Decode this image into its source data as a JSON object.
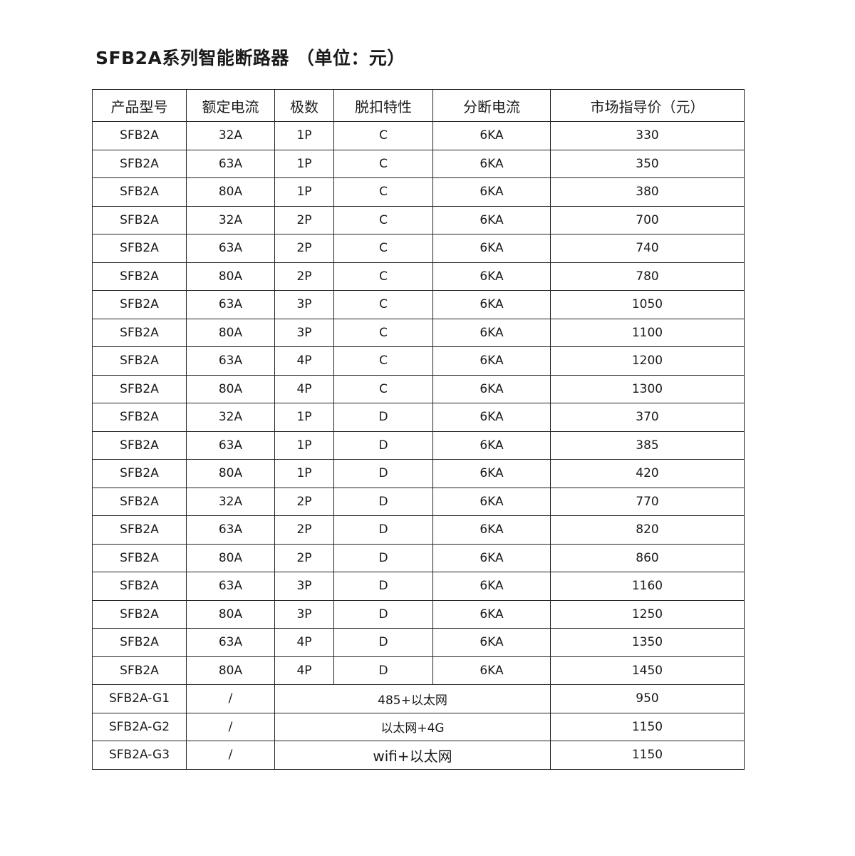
{
  "title": {
    "main": "SFB2A系列智能断路器",
    "unit": "（单位：元）"
  },
  "headers": [
    "产品型号",
    "额定电流",
    "极数",
    "脱扣特性",
    "分断电流",
    "市场指导价（元）"
  ],
  "rows": [
    [
      "SFB2A",
      "32A",
      "1P",
      "C",
      "6KA",
      "330"
    ],
    [
      "SFB2A",
      "63A",
      "1P",
      "C",
      "6KA",
      "350"
    ],
    [
      "SFB2A",
      "80A",
      "1P",
      "C",
      "6KA",
      "380"
    ],
    [
      "SFB2A",
      "32A",
      "2P",
      "C",
      "6KA",
      "700"
    ],
    [
      "SFB2A",
      "63A",
      "2P",
      "C",
      "6KA",
      "740"
    ],
    [
      "SFB2A",
      "80A",
      "2P",
      "C",
      "6KA",
      "780"
    ],
    [
      "SFB2A",
      "63A",
      "3P",
      "C",
      "6KA",
      "1050"
    ],
    [
      "SFB2A",
      "80A",
      "3P",
      "C",
      "6KA",
      "1100"
    ],
    [
      "SFB2A",
      "63A",
      "4P",
      "C",
      "6KA",
      "1200"
    ],
    [
      "SFB2A",
      "80A",
      "4P",
      "C",
      "6KA",
      "1300"
    ],
    [
      "SFB2A",
      "32A",
      "1P",
      "D",
      "6KA",
      "370"
    ],
    [
      "SFB2A",
      "63A",
      "1P",
      "D",
      "6KA",
      "385"
    ],
    [
      "SFB2A",
      "80A",
      "1P",
      "D",
      "6KA",
      "420"
    ],
    [
      "SFB2A",
      "32A",
      "2P",
      "D",
      "6KA",
      "770"
    ],
    [
      "SFB2A",
      "63A",
      "2P",
      "D",
      "6KA",
      "820"
    ],
    [
      "SFB2A",
      "80A",
      "2P",
      "D",
      "6KA",
      "860"
    ],
    [
      "SFB2A",
      "63A",
      "3P",
      "D",
      "6KA",
      "1160"
    ],
    [
      "SFB2A",
      "80A",
      "3P",
      "D",
      "6KA",
      "1250"
    ],
    [
      "SFB2A",
      "63A",
      "4P",
      "D",
      "6KA",
      "1350"
    ],
    [
      "SFB2A",
      "80A",
      "4P",
      "D",
      "6KA",
      "1450"
    ]
  ],
  "gateway_rows": [
    [
      "SFB2A-G1",
      "/",
      "485+以太网",
      "950"
    ],
    [
      "SFB2A-G2",
      "/",
      "以太网+4G",
      "1150"
    ],
    [
      "SFB2A-G3",
      "/",
      "wifi+以太网",
      "1150"
    ]
  ]
}
